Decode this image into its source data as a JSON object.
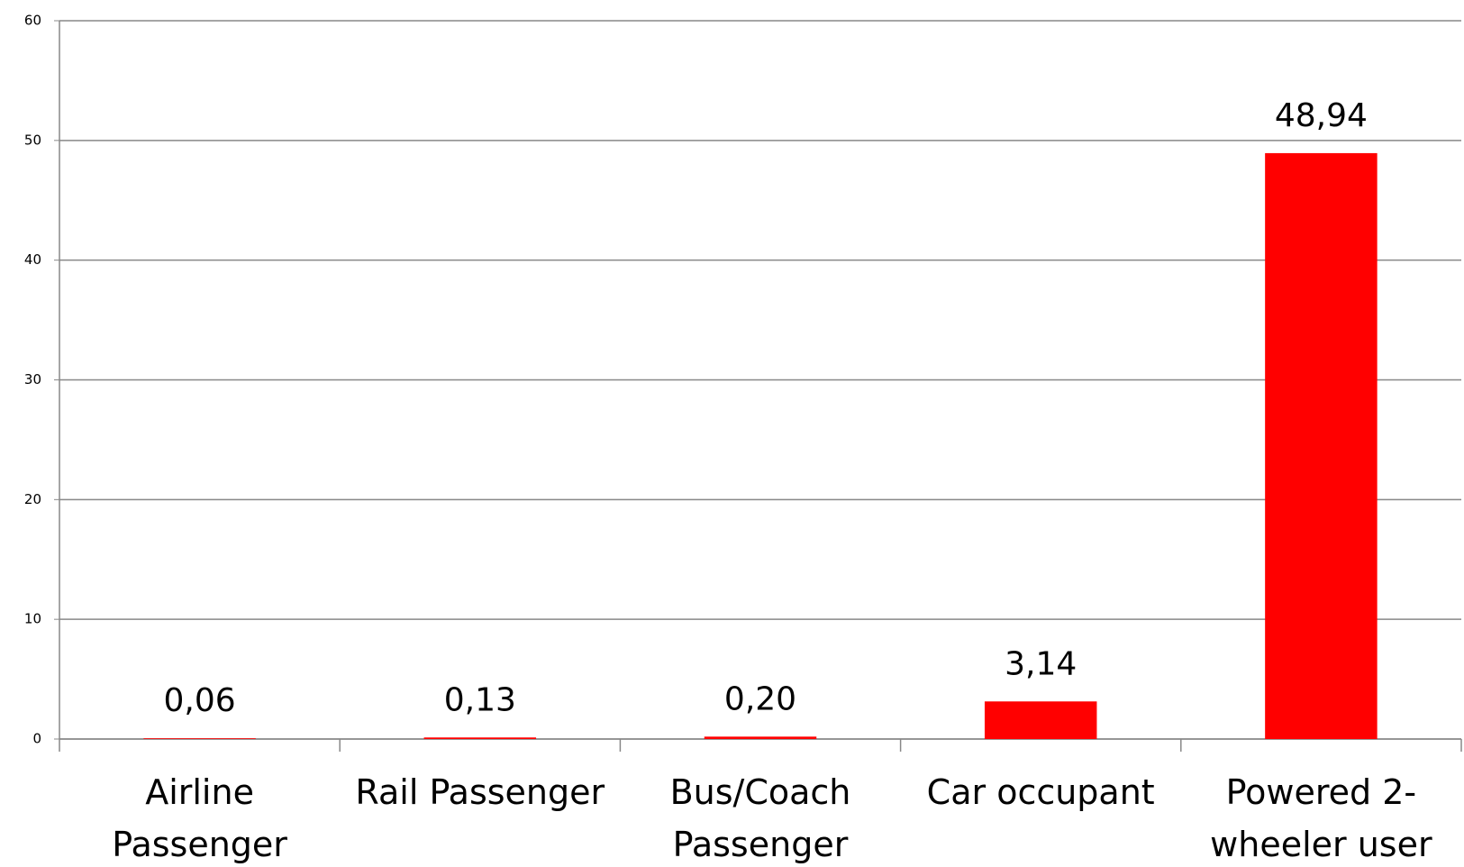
{
  "chart_data": {
    "type": "bar",
    "categories": [
      "Airline Passenger",
      "Rail Passenger",
      "Bus/Coach Passenger",
      "Car occupant",
      "Powered 2-wheeler user"
    ],
    "values": [
      0.06,
      0.13,
      0.2,
      3.14,
      48.94
    ],
    "value_labels": [
      "0,06",
      "0,13",
      "0,20",
      "3,14",
      "48,94"
    ],
    "color": "#ff0000",
    "ylim": [
      0,
      60
    ],
    "yticks": [
      0,
      10,
      20,
      30,
      40,
      50,
      60
    ],
    "grid": true
  }
}
